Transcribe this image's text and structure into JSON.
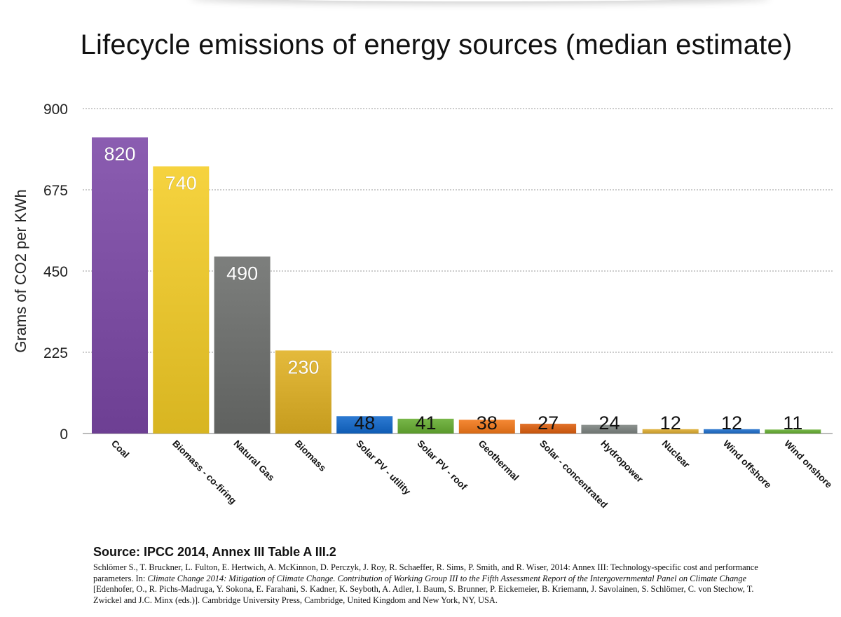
{
  "chart_data": {
    "type": "bar",
    "title": "Lifecycle emissions of energy sources (median estimate)",
    "ylabel": "Grams of CO2 per KWh",
    "xlabel": "",
    "ylim": [
      0,
      900
    ],
    "yticks": [
      0,
      225,
      450,
      675,
      900
    ],
    "grid": true,
    "categories": [
      "Coal",
      "Biomass - co-firing",
      "Natural Gas",
      "Biomass",
      "Solar PV - utility",
      "Solar PV - roof",
      "Geothermal",
      "Solar - concentrated",
      "Hydropower",
      "Nuclear",
      "Wind offshore",
      "Wind onshore"
    ],
    "values": [
      820,
      740,
      490,
      230,
      48,
      41,
      38,
      27,
      24,
      12,
      12,
      11
    ],
    "colors": [
      "#7d4fa3",
      "#e8c531",
      "#6f716f",
      "#d6ac2e",
      "#1f6cc4",
      "#6aa93b",
      "#e77a26",
      "#d4641c",
      "#7e8481",
      "#d4a83a",
      "#2a71c4",
      "#6aaa3c"
    ]
  },
  "source": {
    "heading": "Source: IPCC 2014, Annex III Table A III.2",
    "citation_part1": "Schlömer S., T. Bruckner, L. Fulton, E. Hertwich, A. McKinnon, D. Perczyk, J. Roy, R. Schaeffer, R. Sims, P. Smith, and R. Wiser, 2014: Annex III: Technology-specific cost and performance parameters. In: ",
    "citation_italic": "Climate Change 2014: Mitigation of Climate Change. Contribution of Working Group III to the Fifth Assessment Report of the Intergovernmental Panel on Climate Change",
    "citation_part2": " [Edenhofer, O., R. Pichs-Madruga, Y. Sokona, E. Farahani, S. Kadner, K. Seyboth, A. Adler, I. Baum, S. Brunner, P. Eickemeier, B. Kriemann, J. Savolainen, S. Schlömer, C. von Stechow, T. Zwickel and J.C. Minx (eds.)]. Cambridge University Press, Cambridge, United Kingdom and New York, NY, USA."
  }
}
